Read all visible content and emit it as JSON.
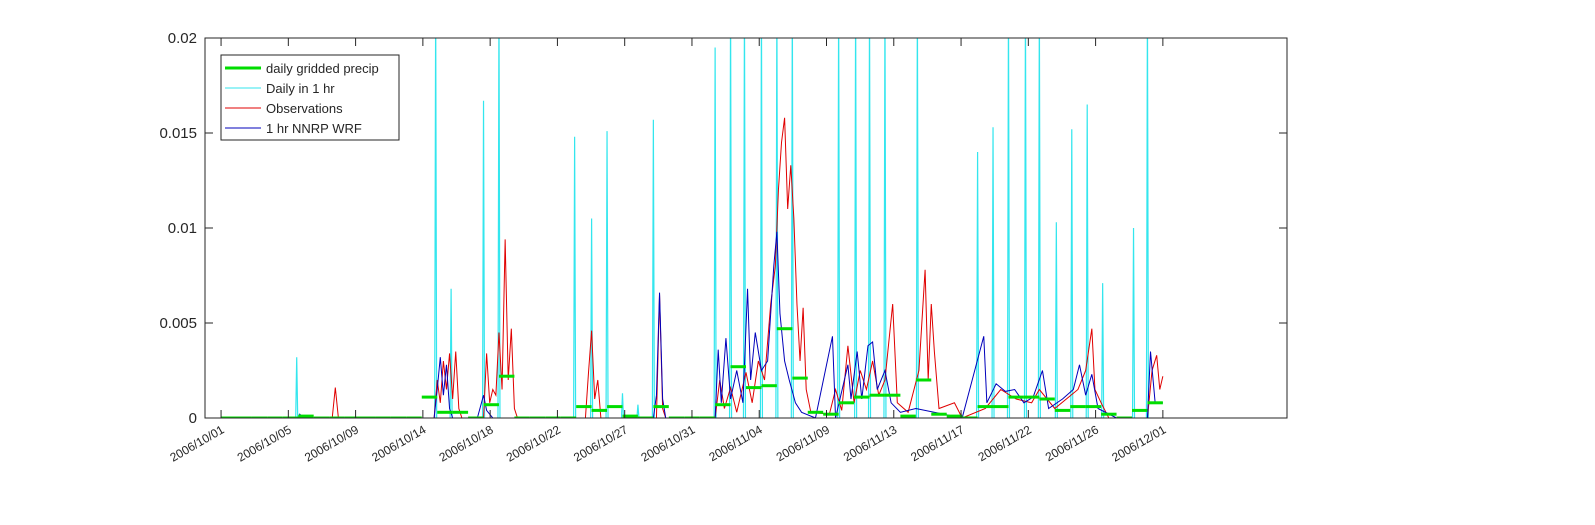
{
  "chart_data": {
    "type": "line",
    "xlim": [
      -1.04,
      69.04
    ],
    "xticks": [
      {
        "value": 0,
        "label": "2006/10/01"
      },
      {
        "value": 4.357,
        "label": "2006/10/05"
      },
      {
        "value": 8.714,
        "label": "2006/10/09"
      },
      {
        "value": 13.071,
        "label": "2006/10/14"
      },
      {
        "value": 17.429,
        "label": "2006/10/18"
      },
      {
        "value": 21.786,
        "label": "2006/10/22"
      },
      {
        "value": 26.143,
        "label": "2006/10/27"
      },
      {
        "value": 30.5,
        "label": "2006/10/31"
      },
      {
        "value": 34.857,
        "label": "2006/11/04"
      },
      {
        "value": 39.214,
        "label": "2006/11/09"
      },
      {
        "value": 43.571,
        "label": "2006/11/13"
      },
      {
        "value": 47.929,
        "label": "2006/11/17"
      },
      {
        "value": 52.286,
        "label": "2006/11/22"
      },
      {
        "value": 56.643,
        "label": "2006/11/26"
      },
      {
        "value": 61,
        "label": "2006/12/01"
      }
    ],
    "ylim": [
      0,
      0.02
    ],
    "yticks": [
      0,
      0.005,
      0.01,
      0.015,
      0.02
    ],
    "legend": "upper left",
    "series": [
      {
        "name": "daily gridded precip",
        "color": "#00dd00",
        "style": "step",
        "x": [
          0,
          1,
          2,
          3,
          4,
          5,
          6,
          7,
          8,
          9,
          10,
          11,
          12,
          13,
          14,
          15,
          16,
          17,
          18,
          19,
          20,
          21,
          22,
          23,
          24,
          25,
          26,
          27,
          28,
          29,
          30,
          31,
          32,
          33,
          34,
          35,
          36,
          37,
          38,
          39,
          40,
          41,
          42,
          43,
          44,
          45,
          46,
          47,
          48,
          49,
          50,
          51,
          52,
          53,
          54,
          55,
          56,
          57,
          58,
          59,
          60
        ],
        "values": [
          0,
          0,
          0,
          0,
          0,
          0.0001,
          0,
          0,
          0,
          0,
          0,
          0,
          0,
          0.0011,
          0.0003,
          0.0003,
          0,
          0.0007,
          0.0022,
          0,
          0,
          0,
          0,
          0.0006,
          0.0004,
          0.0006,
          0.0001,
          0,
          0.0006,
          0,
          0,
          0,
          0.0007,
          0.0027,
          0.0016,
          0.0017,
          0.0047,
          0.0021,
          0.0003,
          0.0002,
          0.0008,
          0.0011,
          0.0012,
          0.0012,
          0.0001,
          0.002,
          0.0002,
          0.0001,
          0,
          0.0006,
          0.0006,
          0.0011,
          0.0011,
          0.001,
          0.0004,
          0.0006,
          0.0006,
          0.0002,
          0,
          0.0004,
          0.0008
        ]
      },
      {
        "name": "Daily in 1 hr",
        "color": "#33e6ee",
        "style": "spike",
        "x": [
          4.9,
          13.9,
          14.9,
          17.0,
          18.0,
          22.9,
          24.0,
          25.0,
          26.0,
          27.0,
          28.0,
          32.0,
          33.0,
          33.9,
          35.0,
          36.0,
          37.0,
          40.0,
          41.1,
          42.0,
          43.0,
          45.1,
          49.0,
          50.0,
          51.0,
          52.1,
          53.0,
          54.1,
          55.1,
          56.1,
          57.1,
          59.1,
          60.0
        ],
        "values": [
          0.0032,
          0.022,
          0.0068,
          0.0167,
          0.022,
          0.0148,
          0.0105,
          0.0151,
          0.0013,
          0.0007,
          0.0157,
          0.0195,
          0.022,
          0.022,
          0.022,
          0.022,
          0.022,
          0.022,
          0.022,
          0.022,
          0.022,
          0.022,
          0.014,
          0.0153,
          0.022,
          0.022,
          0.022,
          0.0103,
          0.0152,
          0.0165,
          0.0071,
          0.01,
          0.022
        ]
      },
      {
        "name": "Observations",
        "color": "#e00000",
        "style": "line",
        "x": [
          0,
          7.2,
          7.4,
          7.6,
          13.8,
          14.0,
          14.2,
          14.4,
          14.6,
          14.8,
          15.0,
          15.2,
          15.4,
          15.6,
          17.0,
          17.2,
          17.4,
          17.6,
          17.8,
          18.0,
          18.2,
          18.4,
          18.6,
          18.8,
          19.0,
          19.2,
          23.6,
          23.8,
          24.0,
          24.2,
          24.4,
          24.6,
          28.2,
          28.4,
          28.6,
          28.8,
          32.0,
          32.3,
          32.6,
          33.0,
          33.4,
          34.0,
          34.4,
          34.8,
          35.2,
          35.6,
          35.9,
          36.1,
          36.3,
          36.5,
          36.7,
          36.9,
          37.1,
          37.3,
          37.5,
          37.7,
          37.9,
          38.2,
          39.4,
          39.8,
          40.2,
          40.6,
          41.0,
          41.4,
          41.8,
          42.2,
          42.6,
          43.0,
          43.5,
          43.8,
          44.5,
          45.2,
          45.6,
          45.8,
          46.0,
          46.2,
          46.5,
          47.5,
          48,
          49.5,
          50.5,
          51.5,
          52.5,
          53,
          54,
          55.5,
          56,
          56.4,
          56.6,
          57,
          57.5,
          60,
          60.3,
          60.6,
          60.8,
          61
        ],
        "values": [
          0,
          0,
          0.0016,
          0,
          0,
          0.002,
          0.0008,
          0.003,
          0.0015,
          0.0034,
          0.001,
          0.0035,
          0.0005,
          0,
          0,
          0.0034,
          0.0008,
          0.0015,
          0.0012,
          0.0045,
          0.0015,
          0.0094,
          0.002,
          0.0047,
          0.0005,
          0,
          0,
          0.0024,
          0.0046,
          0.001,
          0.002,
          0,
          0,
          0.0065,
          0.0005,
          0,
          0,
          0.002,
          0.0005,
          0.0016,
          0.0003,
          0.0024,
          0.0008,
          0.003,
          0.002,
          0.006,
          0.008,
          0.012,
          0.0145,
          0.0158,
          0.011,
          0.0133,
          0.0105,
          0.006,
          0.003,
          0.0058,
          0.0015,
          0.0003,
          0.0002,
          0.0015,
          0.0004,
          0.0038,
          0.0008,
          0.0025,
          0.0015,
          0.003,
          0.0012,
          0.002,
          0.006,
          0.0008,
          0.0003,
          0.0025,
          0.0078,
          0.002,
          0.006,
          0.0035,
          0.0005,
          0.0008,
          0,
          0.0005,
          0.0015,
          0.001,
          0.0008,
          0.0015,
          0.0005,
          0.0015,
          0.0025,
          0.0047,
          0.0015,
          0.0008,
          0,
          0,
          0.0025,
          0.0033,
          0.0015,
          0.0022
        ]
      },
      {
        "name": "1 hr NNRP WRF",
        "color": "#0000bb",
        "style": "line",
        "x": [
          0,
          5.0,
          5.1,
          5.3,
          13.8,
          14.0,
          14.2,
          14.4,
          14.6,
          14.8,
          15.0,
          16.6,
          16.8,
          17.0,
          17.2,
          17.6,
          28.0,
          28.2,
          28.4,
          28.6,
          28.8,
          32.0,
          32.2,
          32.4,
          32.7,
          33.0,
          33.4,
          33.8,
          34.1,
          34.3,
          34.6,
          35.0,
          35.4,
          35.8,
          36.0,
          36.2,
          36.5,
          36.8,
          37.2,
          37.6,
          38.5,
          39.6,
          39.8,
          40.6,
          40.8,
          41.2,
          41.5,
          41.9,
          42.2,
          42.5,
          43.0,
          43.4,
          44,
          45,
          48,
          49.4,
          49.6,
          50.2,
          50.8,
          51.4,
          52.0,
          52.6,
          53.2,
          53.6,
          54.5,
          55.2,
          55.6,
          56.0,
          56.4,
          56.8,
          58,
          60,
          60.2,
          60.5,
          61
        ],
        "values": [
          0,
          0,
          0.0002,
          0,
          0,
          0.0015,
          0.0032,
          0.0012,
          0.0028,
          0.0005,
          0,
          0,
          0.0006,
          0.0012,
          0.0004,
          0,
          0,
          0.0012,
          0.0066,
          0.001,
          0,
          0,
          0.0036,
          0.0008,
          0.0042,
          0.001,
          0.0025,
          0.0008,
          0.0068,
          0.002,
          0.0045,
          0.0025,
          0.003,
          0.008,
          0.0098,
          0.0055,
          0.003,
          0.002,
          0.0008,
          0.0003,
          0,
          0.0043,
          0,
          0.0028,
          0.001,
          0.0035,
          0.001,
          0.0038,
          0.004,
          0.0015,
          0.0025,
          0.0008,
          0.0003,
          0.0005,
          0,
          0.0043,
          0.0008,
          0.0018,
          0.0014,
          0.0015,
          0.0008,
          0.0011,
          0.0025,
          0.0005,
          0.001,
          0.0015,
          0.0028,
          0.0012,
          0.0023,
          0.0005,
          0,
          0,
          0.0035,
          0.0008,
          0.0008
        ]
      }
    ]
  }
}
